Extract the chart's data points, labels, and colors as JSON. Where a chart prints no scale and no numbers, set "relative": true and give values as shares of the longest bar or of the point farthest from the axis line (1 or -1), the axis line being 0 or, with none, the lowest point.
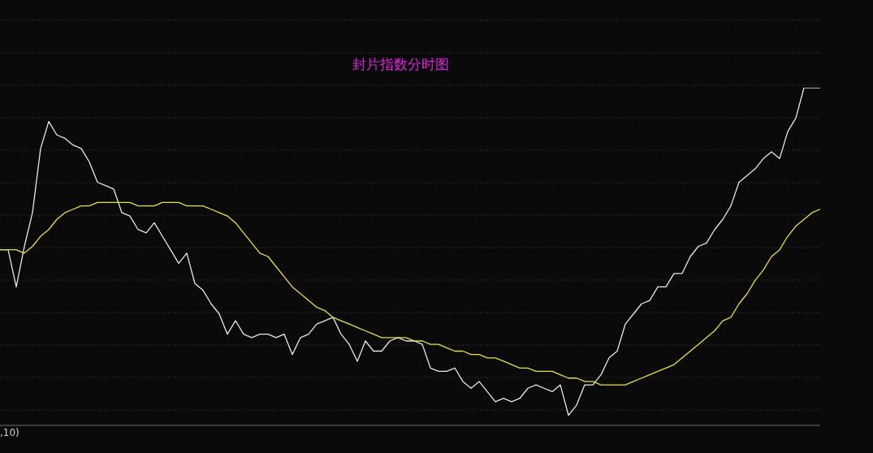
{
  "chart_data": {
    "type": "line",
    "title": "封片指数分时图",
    "relative": true,
    "grid": "y",
    "marker": "none",
    "line_style": "solid",
    "annotations": [
      ",10)"
    ],
    "categories": [
      null,
      null,
      null,
      null,
      null,
      null,
      null,
      null,
      null,
      null,
      null,
      null,
      null,
      null,
      null,
      null,
      null,
      null,
      null,
      null,
      null,
      null,
      null,
      null,
      null,
      null,
      null,
      null,
      null,
      null,
      null,
      null,
      null,
      null,
      null,
      null,
      null,
      null,
      null,
      null,
      null,
      null,
      null,
      null,
      null,
      null,
      null,
      null,
      null,
      null,
      null,
      null,
      null,
      null,
      null,
      null,
      null,
      null,
      null,
      null,
      null,
      null,
      null,
      null,
      null,
      null,
      null,
      null,
      null,
      null,
      null,
      null,
      null,
      null,
      null,
      null,
      null,
      null,
      null,
      null,
      null,
      null,
      null,
      null,
      null,
      null,
      null,
      null,
      null,
      null,
      null,
      null,
      null,
      null,
      null,
      null,
      null,
      null,
      null,
      null,
      null,
      null
    ],
    "series": [
      {
        "color": "#e8e8e8",
        "values": [
          0.52,
          0.52,
          0.41,
          0.53,
          0.63,
          0.82,
          0.9,
          0.86,
          0.85,
          0.83,
          0.82,
          0.78,
          0.72,
          0.71,
          0.7,
          0.63,
          0.62,
          0.58,
          0.57,
          0.6,
          0.56,
          0.52,
          0.48,
          0.51,
          0.42,
          0.4,
          0.36,
          0.33,
          0.27,
          0.31,
          0.27,
          0.26,
          0.27,
          0.27,
          0.26,
          0.27,
          0.21,
          0.26,
          0.27,
          0.3,
          0.31,
          0.32,
          0.27,
          0.24,
          0.19,
          0.25,
          0.22,
          0.22,
          0.25,
          0.26,
          0.25,
          0.25,
          0.24,
          0.17,
          0.16,
          0.16,
          0.17,
          0.13,
          0.11,
          0.13,
          0.1,
          0.07,
          0.08,
          0.07,
          0.08,
          0.11,
          0.12,
          0.11,
          0.1,
          0.12,
          0.03,
          0.06,
          0.12,
          0.12,
          0.15,
          0.2,
          0.22,
          0.3,
          0.33,
          0.36,
          0.37,
          0.41,
          0.41,
          0.45,
          0.45,
          0.5,
          0.53,
          0.54,
          0.58,
          0.61,
          0.65,
          0.72,
          0.74,
          0.76,
          0.79,
          0.81,
          0.79,
          0.87,
          0.91,
          1,
          1,
          1
        ]
      },
      {
        "color": "#e8e040",
        "values": [
          0.52,
          0.52,
          0.52,
          0.51,
          0.53,
          0.56,
          0.58,
          0.61,
          0.63,
          0.64,
          0.65,
          0.65,
          0.66,
          0.66,
          0.66,
          0.66,
          0.66,
          0.65,
          0.65,
          0.65,
          0.66,
          0.66,
          0.66,
          0.65,
          0.65,
          0.65,
          0.64,
          0.63,
          0.62,
          0.6,
          0.57,
          0.54,
          0.51,
          0.5,
          0.47,
          0.44,
          0.41,
          0.39,
          0.37,
          0.35,
          0.34,
          0.32,
          0.31,
          0.3,
          0.29,
          0.28,
          0.27,
          0.26,
          0.26,
          0.26,
          0.26,
          0.25,
          0.25,
          0.24,
          0.24,
          0.23,
          0.22,
          0.22,
          0.21,
          0.21,
          0.2,
          0.2,
          0.19,
          0.18,
          0.17,
          0.17,
          0.16,
          0.16,
          0.16,
          0.15,
          0.14,
          0.14,
          0.13,
          0.13,
          0.12,
          0.12,
          0.12,
          0.12,
          0.13,
          0.14,
          0.15,
          0.16,
          0.17,
          0.18,
          0.2,
          0.22,
          0.24,
          0.26,
          0.28,
          0.31,
          0.32,
          0.36,
          0.39,
          0.43,
          0.46,
          0.5,
          0.52,
          0.56,
          0.59,
          0.61,
          0.63,
          0.64
        ]
      }
    ]
  }
}
